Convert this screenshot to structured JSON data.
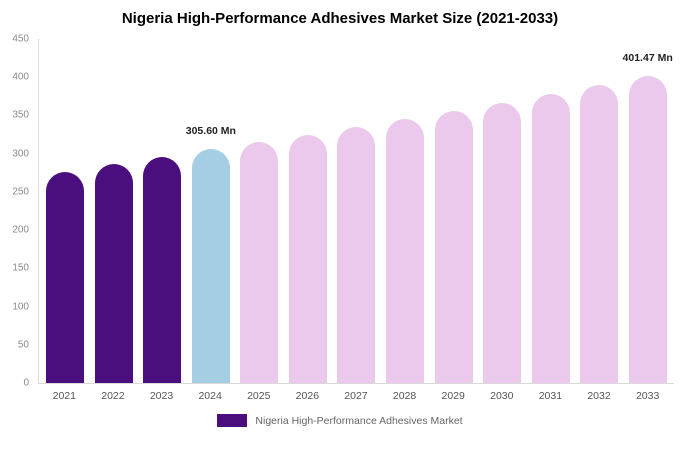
{
  "title": "Nigeria High-Performance Adhesives Market Size (2021-2033)",
  "legend": {
    "label": "Nigeria High-Performance Adhesives Market",
    "color": "#4a0e7f"
  },
  "chart_data": {
    "type": "bar",
    "title": "Nigeria High-Performance Adhesives Market Size (2021-2033)",
    "categories": [
      "2021",
      "2022",
      "2023",
      "2024",
      "2025",
      "2026",
      "2027",
      "2028",
      "2029",
      "2030",
      "2031",
      "2032",
      "2033"
    ],
    "values": [
      276.5,
      286.5,
      296.0,
      305.6,
      315.0,
      324.7,
      334.7,
      345.1,
      355.7,
      366.7,
      378.0,
      389.6,
      401.47
    ],
    "unit": "Mn",
    "bar_colors": [
      "#4a0e7f",
      "#4a0e7f",
      "#4a0e7f",
      "#a5cee4",
      "#eac9ec",
      "#eac9ec",
      "#eac9ec",
      "#eac9ec",
      "#eac9ec",
      "#eac9ec",
      "#eac9ec",
      "#eac9ec",
      "#eac9ec"
    ],
    "annotations": [
      {
        "index": 3,
        "text": "305.60 Mn"
      },
      {
        "index": 12,
        "text": "401.47 Mn"
      }
    ],
    "ylim": [
      0,
      450
    ],
    "yticks": [
      0,
      50,
      100,
      150,
      200,
      250,
      300,
      350,
      400,
      450
    ],
    "xlabel": "",
    "ylabel": "",
    "grid": false,
    "legend_position": "bottom"
  }
}
